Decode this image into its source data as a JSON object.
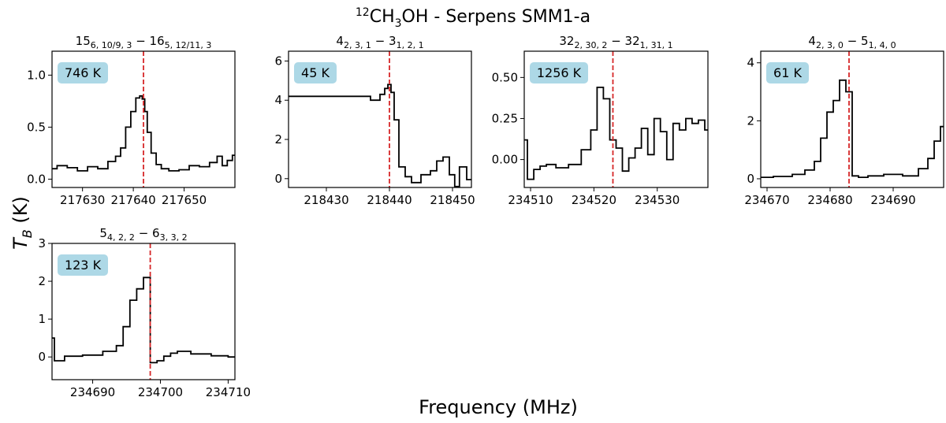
{
  "figure": {
    "title_sup": "12",
    "title_main": "CH",
    "title_sub": "3",
    "title_rest": "OH - Serpens SMM1-a",
    "xlabel": "Frequency (MHz)",
    "ylabel_main": "T",
    "ylabel_sub": "B",
    "ylabel_unit": " (K)"
  },
  "colors": {
    "line": "#000000",
    "marker": "#d62728",
    "badge": "#add8e6"
  },
  "chart_data": [
    {
      "type": "line",
      "title": [
        [
          "15",
          ""
        ],
        [
          "6, 10/9, 3",
          "sub"
        ],
        [
          " − 16",
          ""
        ],
        [
          "5, 12/11, 3",
          "sub"
        ]
      ],
      "badge": "746 K",
      "xlim": [
        217624,
        217660
      ],
      "ylim": [
        -0.08,
        1.23
      ],
      "xticks": [
        217630,
        217640,
        217650
      ],
      "yticks": [
        "0.0",
        "0.5",
        "1.0"
      ],
      "ytick_values": [
        0,
        0.5,
        1.0
      ],
      "marker": 217642,
      "x": [
        217624,
        217626,
        217628,
        217630,
        217632,
        217634,
        217636,
        217637,
        217638,
        217639,
        217640,
        217641,
        217641.5,
        217642,
        217642.5,
        217643,
        217644,
        217645,
        217646,
        217648,
        217650,
        217652,
        217654,
        217656,
        217657,
        217658,
        217659,
        217660
      ],
      "y": [
        0.1,
        0.13,
        0.11,
        0.08,
        0.12,
        0.1,
        0.17,
        0.22,
        0.3,
        0.5,
        0.65,
        0.78,
        0.8,
        0.77,
        0.65,
        0.45,
        0.25,
        0.14,
        0.1,
        0.08,
        0.09,
        0.13,
        0.12,
        0.16,
        0.22,
        0.13,
        0.18,
        0.23
      ]
    },
    {
      "type": "line",
      "title": [
        [
          "4",
          ""
        ],
        [
          "2, 3, 1",
          "sub"
        ],
        [
          " − 3",
          ""
        ],
        [
          "1, 2, 1",
          "sub"
        ]
      ],
      "badge": "45 K",
      "xlim": [
        218424,
        218453
      ],
      "ylim": [
        -0.45,
        6.5
      ],
      "xticks": [
        218430,
        218440,
        218450
      ],
      "yticks": [
        "0",
        "2",
        "4",
        "6"
      ],
      "ytick_values": [
        0,
        2,
        4,
        6
      ],
      "marker": 218440,
      "x": [
        218424,
        218436,
        218438,
        218439,
        218439.5,
        218440,
        218440.5,
        218441,
        218442,
        218443,
        218444,
        218446,
        218447,
        218448,
        218449,
        218450,
        218450.7,
        218451.5,
        218453
      ],
      "y": [
        4.2,
        4.2,
        4.0,
        4.3,
        4.6,
        4.8,
        4.4,
        3.0,
        0.6,
        0.1,
        -0.2,
        0.2,
        0.4,
        0.9,
        1.1,
        0.2,
        -0.4,
        0.6,
        -0.05
      ]
    },
    {
      "type": "line",
      "title": [
        [
          "32",
          ""
        ],
        [
          "2, 30, 2",
          "sub"
        ],
        [
          " − 32",
          ""
        ],
        [
          "1, 31, 1",
          "sub"
        ]
      ],
      "badge": "1256 K",
      "xlim": [
        234509,
        234538
      ],
      "ylim": [
        -0.17,
        0.66
      ],
      "xticks": [
        234510,
        234520,
        234530
      ],
      "yticks": [
        "0.00",
        "0.25",
        "0.50"
      ],
      "ytick_values": [
        0,
        0.25,
        0.5
      ],
      "marker": 234523,
      "x": [
        234509,
        234510,
        234511,
        234512,
        234513,
        234515,
        234517,
        234519,
        234520,
        234521,
        234522,
        234523,
        234524,
        234525,
        234526,
        234527,
        234528,
        234529,
        234530,
        234531,
        234532,
        234533,
        234534,
        234535,
        234536,
        234537,
        234538
      ],
      "y": [
        0.12,
        -0.12,
        -0.06,
        -0.04,
        -0.03,
        -0.05,
        -0.03,
        0.06,
        0.18,
        0.44,
        0.37,
        0.12,
        0.07,
        -0.07,
        0.01,
        0.07,
        0.19,
        0.03,
        0.25,
        0.17,
        0.0,
        0.22,
        0.18,
        0.25,
        0.22,
        0.24,
        0.18
      ]
    },
    {
      "type": "line",
      "title": [
        [
          "4",
          ""
        ],
        [
          "2, 3, 0",
          "sub"
        ],
        [
          " − 5",
          ""
        ],
        [
          "1, 4, 0",
          "sub"
        ]
      ],
      "badge": "61 K",
      "xlim": [
        234669,
        234698
      ],
      "ylim": [
        -0.3,
        4.4
      ],
      "xticks": [
        234670,
        234680,
        234690
      ],
      "yticks": [
        "0",
        "2",
        "4"
      ],
      "ytick_values": [
        0,
        2,
        4
      ],
      "marker": 234683,
      "x": [
        234669,
        234673,
        234675,
        234677,
        234678,
        234679,
        234680,
        234681,
        234682,
        234683,
        234684,
        234685,
        234687,
        234690,
        234693,
        234695,
        234696,
        234697,
        234698
      ],
      "y": [
        0.05,
        0.08,
        0.15,
        0.3,
        0.6,
        1.4,
        2.3,
        2.7,
        3.4,
        3.0,
        0.1,
        0.05,
        0.1,
        0.15,
        0.1,
        0.35,
        0.7,
        1.3,
        1.8
      ]
    },
    {
      "type": "line",
      "title": [
        [
          "5",
          ""
        ],
        [
          "4, 2, 2",
          "sub"
        ],
        [
          " − 6",
          ""
        ],
        [
          "3, 3, 2",
          "sub"
        ]
      ],
      "badge": "123 K",
      "xlim": [
        234684,
        234711
      ],
      "ylim": [
        -0.6,
        3.0
      ],
      "xticks": [
        234690,
        234700,
        234710
      ],
      "yticks": [
        "0",
        "1",
        "2",
        "3"
      ],
      "ytick_values": [
        0,
        1,
        2,
        3
      ],
      "marker": 234698.5,
      "x": [
        234684,
        234684.7,
        234687,
        234690,
        234693,
        234694,
        234695,
        234696,
        234697,
        234698,
        234699,
        234700,
        234701,
        234702,
        234703,
        234706,
        234709,
        234711
      ],
      "y": [
        0.5,
        -0.1,
        0.02,
        0.05,
        0.15,
        0.3,
        0.8,
        1.5,
        1.8,
        2.1,
        -0.15,
        -0.1,
        0.02,
        0.1,
        0.15,
        0.08,
        0.03,
        0.0
      ]
    }
  ]
}
